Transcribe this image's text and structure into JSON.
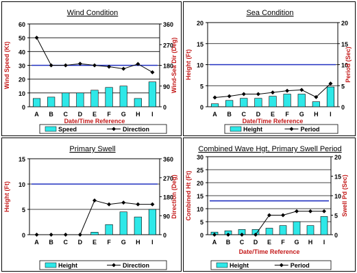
{
  "colors": {
    "bar": "#2ee8e8",
    "line": "#000000",
    "ref_line": "#1f2fbf",
    "axis_label": "#c41a1a"
  },
  "chart_data": [
    {
      "type": "bar",
      "title": "Wind Condition",
      "xlabel": "Date/Time Reference",
      "ylabel": "Wind Speed (Kt)",
      "y2label": "Wind-Sea Dir (Deg)",
      "categories": [
        "A",
        "B",
        "C",
        "D",
        "E",
        "F",
        "G",
        "H",
        "I"
      ],
      "ylim": [
        0,
        60
      ],
      "yticks": [
        0,
        10,
        20,
        30,
        40,
        50,
        60
      ],
      "y2lim": [
        0,
        360
      ],
      "y2ticks": [
        0,
        90,
        180,
        270,
        360
      ],
      "ref_line": 30,
      "series": [
        {
          "name": "Speed",
          "type": "bar",
          "axis": "left",
          "values": [
            6,
            7,
            10,
            10,
            12,
            14,
            15,
            6,
            18
          ]
        },
        {
          "name": "Direction",
          "type": "line",
          "axis": "right",
          "values": [
            300,
            180,
            180,
            180,
            180,
            180,
            180,
            180,
            180
          ],
          "values_detail": [
            300,
            180,
            180,
            187,
            180,
            174,
            165,
            186,
            150
          ]
        }
      ],
      "legend": "bottom",
      "grid": true
    },
    {
      "type": "bar",
      "title": "Sea Condition",
      "xlabel": "Date/Time Reference",
      "ylabel": "Height (Ft)",
      "y2label": "Period (Sec)",
      "categories": [
        "A",
        "B",
        "C",
        "D",
        "E",
        "F",
        "G",
        "H",
        "I"
      ],
      "ylim": [
        0,
        20
      ],
      "yticks": [
        0,
        5,
        10,
        15,
        20
      ],
      "y2lim": [
        0,
        20
      ],
      "y2ticks": [
        0,
        5,
        10,
        15,
        20
      ],
      "ref_line": 10,
      "series": [
        {
          "name": "Height",
          "type": "bar",
          "axis": "left",
          "values": [
            0.7,
            1.5,
            2,
            2,
            2.5,
            3,
            3,
            1.2,
            4.7
          ]
        },
        {
          "name": "Period",
          "type": "line",
          "axis": "right",
          "values": [
            2.2,
            2.5,
            3,
            3,
            3.4,
            3.8,
            4,
            2.3,
            5.5
          ]
        }
      ],
      "legend": "bottom",
      "grid": true
    },
    {
      "type": "bar",
      "title": "Primary Swell",
      "xlabel": "",
      "ylabel": "Height (Ft)",
      "y2label": "Direction (Deg)",
      "categories": [
        "A",
        "B",
        "C",
        "D",
        "E",
        "F",
        "G",
        "H",
        "I"
      ],
      "ylim": [
        0,
        15
      ],
      "yticks": [
        0,
        5,
        10,
        15
      ],
      "y2lim": [
        0,
        360
      ],
      "y2ticks": [
        0,
        90,
        180,
        270,
        360
      ],
      "ref_line": 10,
      "series": [
        {
          "name": "Height",
          "type": "bar",
          "axis": "left",
          "values": [
            0,
            0,
            0,
            0,
            0.5,
            2,
            4.5,
            3.5,
            5
          ]
        },
        {
          "name": "Direction",
          "type": "line",
          "axis": "right",
          "values": [
            0,
            0,
            0,
            0,
            162,
            144,
            152,
            144,
            144
          ]
        }
      ],
      "legend": "bottom",
      "grid": true
    },
    {
      "type": "bar",
      "title": "Combined Wave Hgt, Primary Swell Period",
      "xlabel": "Date/Time Reference",
      "ylabel": "Combined Ht (Ft)",
      "y2label": "Swell Pd (Sec)",
      "categories": [
        "A",
        "B",
        "C",
        "D",
        "E",
        "F",
        "G",
        "H",
        "I"
      ],
      "ylim": [
        0,
        30
      ],
      "yticks": [
        0,
        5,
        10,
        15,
        20,
        25,
        30
      ],
      "y2lim": [
        0,
        20
      ],
      "y2ticks": [
        0,
        5,
        10,
        15,
        20
      ],
      "ref_line": 13,
      "series": [
        {
          "name": "Height",
          "type": "bar",
          "axis": "left",
          "values": [
            1,
            1.5,
            2,
            2,
            2.5,
            3.5,
            5,
            3.5,
            7
          ]
        },
        {
          "name": "Period",
          "type": "line",
          "axis": "right",
          "values": [
            0,
            0,
            0,
            0,
            5,
            5,
            6,
            6,
            6
          ]
        }
      ],
      "legend": "bottom",
      "grid": true
    }
  ]
}
